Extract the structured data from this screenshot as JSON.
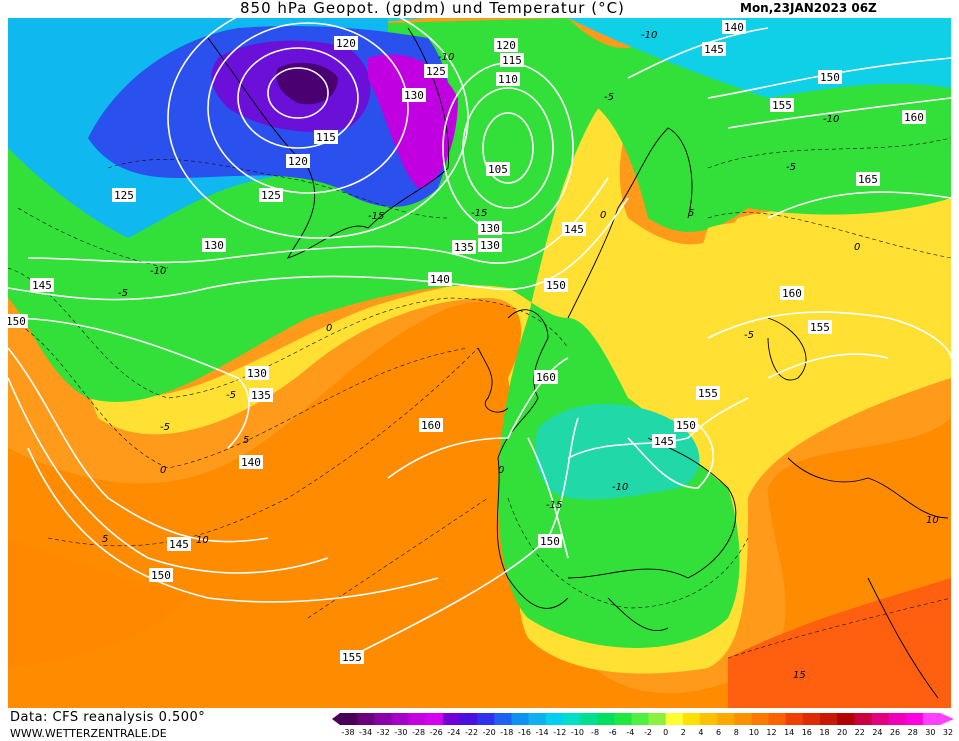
{
  "header": {
    "title": "850 hPa Geopot. (gpdm) und Temperatur (°C)",
    "datetime": "Mon,23JAN2023 06Z"
  },
  "footer": {
    "data_source": "Data: CFS reanalysis 0.500°",
    "website": "WWW.WETTERZENTRALE.DE"
  },
  "legend": {
    "ticks": [
      "-38",
      "-34",
      "-32",
      "-30",
      "-28",
      "-26",
      "-24",
      "-22",
      "-20",
      "-18",
      "-16",
      "-14",
      "-12",
      "-10",
      "-8",
      "-6",
      "-4",
      "-2",
      "0",
      "2",
      "4",
      "6",
      "8",
      "10",
      "12",
      "14",
      "16",
      "18",
      "20",
      "22",
      "24",
      "26",
      "28",
      "30",
      "32"
    ],
    "colors": [
      "#4b0057",
      "#6a007c",
      "#8a00a8",
      "#a600c8",
      "#c400e0",
      "#d400f0",
      "#6f00d8",
      "#4a10e0",
      "#3030f0",
      "#2060f0",
      "#1090f0",
      "#10b0f0",
      "#00d0f0",
      "#00e0c8",
      "#00e090",
      "#00e060",
      "#20e840",
      "#50f040",
      "#8cf03c",
      "#ffff33",
      "#ffe000",
      "#ffc000",
      "#ffa800",
      "#ff9000",
      "#ff7800",
      "#ff6000",
      "#f04000",
      "#e02a00",
      "#c81800",
      "#b00000",
      "#c80040",
      "#e00080",
      "#f000b8",
      "#ff00e0",
      "#ff40ff"
    ],
    "colors_rendered": "gradient"
  },
  "map": {
    "geopotential_labels": [
      "120",
      "125",
      "130",
      "115",
      "120",
      "125",
      "130",
      "135",
      "140",
      "145",
      "150",
      "120",
      "115",
      "110",
      "105",
      "130",
      "125",
      "130",
      "135",
      "140",
      "145",
      "150",
      "155",
      "160",
      "165",
      "140",
      "145",
      "150",
      "155",
      "160",
      "155",
      "160",
      "130",
      "135",
      "140",
      "145",
      "150",
      "155",
      "160",
      "155",
      "145",
      "150",
      "150"
    ],
    "temperature_labels": [
      "-10",
      "-5",
      "0",
      "-15",
      "-10",
      "-5",
      "0",
      "5",
      "-5",
      "0",
      "5",
      "-5",
      "-10",
      "-15",
      "5",
      "10",
      "15",
      "-5",
      "-10",
      "-15",
      "0",
      "5",
      "10",
      "-10",
      "-5",
      "0"
    ]
  }
}
